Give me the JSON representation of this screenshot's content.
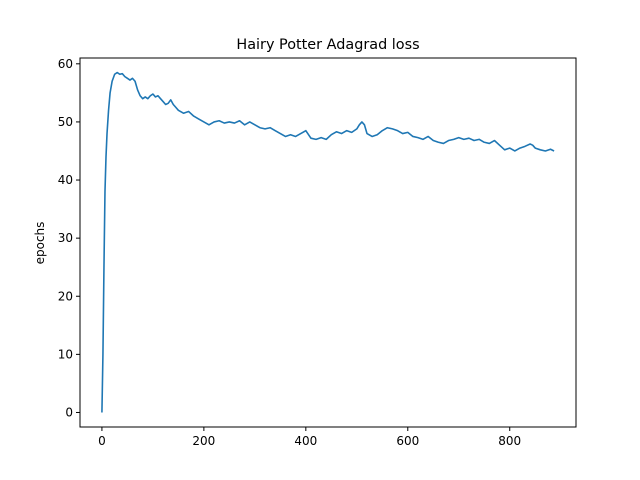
{
  "chart_data": {
    "type": "line",
    "title": "Hairy Potter Adagrad loss",
    "xlabel": "",
    "ylabel": "epochs",
    "xlim": [
      -43,
      930
    ],
    "ylim": [
      -2.5,
      61
    ],
    "xticks": [
      0,
      200,
      400,
      600,
      800
    ],
    "yticks": [
      0,
      10,
      20,
      30,
      40,
      50,
      60
    ],
    "grid": false,
    "color": "#1f77b4",
    "series": [
      {
        "x": [
          0,
          2,
          4,
          6,
          8,
          10,
          13,
          16,
          20,
          25,
          30,
          35,
          40,
          45,
          50,
          55,
          60,
          65,
          70,
          75,
          80,
          85,
          90,
          95,
          100,
          105,
          110,
          115,
          120,
          125,
          130,
          135,
          140,
          145,
          150,
          160,
          170,
          180,
          190,
          200,
          210,
          220,
          230,
          240,
          250,
          260,
          270,
          280,
          290,
          300,
          310,
          320,
          330,
          340,
          350,
          360,
          370,
          380,
          390,
          400,
          410,
          420,
          430,
          440,
          450,
          460,
          470,
          480,
          490,
          500,
          505,
          510,
          515,
          520,
          530,
          540,
          550,
          560,
          570,
          580,
          590,
          600,
          610,
          620,
          630,
          640,
          650,
          660,
          670,
          680,
          690,
          700,
          710,
          720,
          730,
          740,
          750,
          760,
          770,
          780,
          790,
          800,
          810,
          820,
          830,
          840,
          845,
          850,
          860,
          870,
          880,
          887
        ],
        "y": [
          0,
          10,
          25,
          38,
          44,
          48,
          52,
          55,
          57,
          58.2,
          58.5,
          58.2,
          58.3,
          57.8,
          57.5,
          57.2,
          57.5,
          57.0,
          55.5,
          54.5,
          54.0,
          54.3,
          54.0,
          54.5,
          54.8,
          54.3,
          54.5,
          54.0,
          53.5,
          53.0,
          53.2,
          53.8,
          53.0,
          52.5,
          52.0,
          51.5,
          51.8,
          51.0,
          50.5,
          50.0,
          49.5,
          50.0,
          50.2,
          49.8,
          50.0,
          49.8,
          50.2,
          49.5,
          50.0,
          49.5,
          49.0,
          48.8,
          49.0,
          48.5,
          48.0,
          47.5,
          47.8,
          47.5,
          48.0,
          48.5,
          47.2,
          47.0,
          47.3,
          47.0,
          47.8,
          48.3,
          48.0,
          48.5,
          48.2,
          48.8,
          49.5,
          50.0,
          49.5,
          48.0,
          47.5,
          47.8,
          48.5,
          49.0,
          48.8,
          48.5,
          48.0,
          48.2,
          47.5,
          47.3,
          47.0,
          47.5,
          46.8,
          46.5,
          46.3,
          46.8,
          47.0,
          47.3,
          47.0,
          47.2,
          46.8,
          47.0,
          46.5,
          46.3,
          46.8,
          46.0,
          45.2,
          45.5,
          45.0,
          45.5,
          45.8,
          46.2,
          46.0,
          45.5,
          45.2,
          45.0,
          45.3,
          45.0
        ]
      }
    ]
  }
}
